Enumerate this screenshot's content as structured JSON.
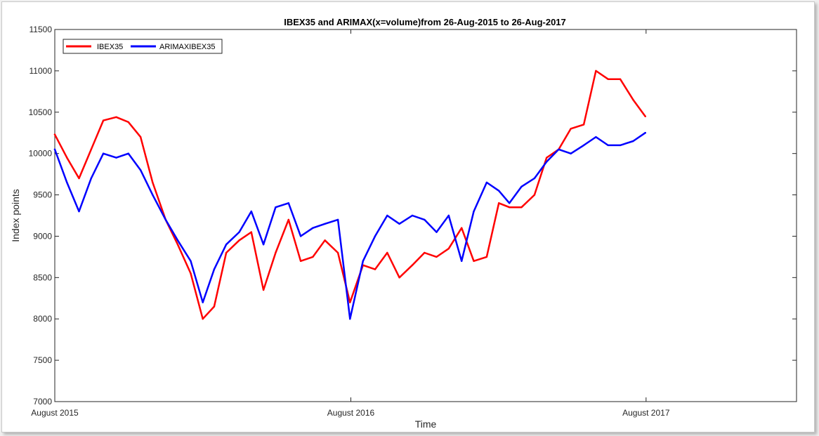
{
  "chart_data": {
    "type": "line",
    "title": "IBEX35 and ARIMAX(x=volume)from 26-Aug-2015 to 26-Aug-2017",
    "xlabel": "Time",
    "ylabel": "Index points",
    "ylim": [
      7000,
      11500
    ],
    "yticks": [
      7000,
      7500,
      8000,
      8500,
      9000,
      9500,
      10000,
      10500,
      11000,
      11500
    ],
    "xlim": [
      "2015-08-26",
      "2018-02-28"
    ],
    "xticks": [
      {
        "date": "2015-08-26",
        "label": "August 2015"
      },
      {
        "date": "2016-08-26",
        "label": "August 2016"
      },
      {
        "date": "2017-08-26",
        "label": "August 2017"
      }
    ],
    "legend_position": "top-left",
    "grid": false,
    "x": [
      "2015-08-26",
      "2015-09-10",
      "2015-09-25",
      "2015-10-10",
      "2015-10-25",
      "2015-11-10",
      "2015-11-25",
      "2015-12-10",
      "2015-12-25",
      "2016-01-10",
      "2016-01-25",
      "2016-02-10",
      "2016-02-25",
      "2016-03-10",
      "2016-03-25",
      "2016-04-10",
      "2016-04-25",
      "2016-05-10",
      "2016-05-25",
      "2016-06-10",
      "2016-06-25",
      "2016-07-10",
      "2016-07-25",
      "2016-08-10",
      "2016-08-25",
      "2016-09-10",
      "2016-09-25",
      "2016-10-10",
      "2016-10-25",
      "2016-11-10",
      "2016-11-25",
      "2016-12-10",
      "2016-12-25",
      "2017-01-10",
      "2017-01-25",
      "2017-02-10",
      "2017-02-25",
      "2017-03-10",
      "2017-03-25",
      "2017-04-10",
      "2017-04-25",
      "2017-05-10",
      "2017-05-25",
      "2017-06-10",
      "2017-06-25",
      "2017-07-10",
      "2017-07-25",
      "2017-08-10",
      "2017-08-25"
    ],
    "series": [
      {
        "name": "IBEX35",
        "color": "#ff0000",
        "values": [
          10230,
          9950,
          9700,
          10050,
          10400,
          10440,
          10380,
          10200,
          9650,
          9200,
          8900,
          8550,
          8000,
          8150,
          8800,
          8950,
          9050,
          8350,
          8800,
          9200,
          8700,
          8750,
          8950,
          8800,
          8200,
          8650,
          8600,
          8800,
          8500,
          8650,
          8800,
          8750,
          8850,
          9100,
          8700,
          8750,
          9400,
          9350,
          9350,
          9500,
          9950,
          10050,
          10300,
          10350,
          11000,
          10900,
          10900,
          10650,
          10450
        ]
      },
      {
        "name": "ARIMAXIBEX35",
        "color": "#0000ff",
        "values": [
          10050,
          9650,
          9300,
          9700,
          10000,
          9950,
          10000,
          9800,
          9500,
          9200,
          8950,
          8700,
          8200,
          8600,
          8900,
          9050,
          9300,
          8900,
          9350,
          9400,
          9000,
          9100,
          9150,
          9200,
          8000,
          8700,
          9000,
          9250,
          9150,
          9250,
          9200,
          9050,
          9250,
          8700,
          9300,
          9650,
          9550,
          9400,
          9600,
          9700,
          9900,
          10050,
          10000,
          10100,
          10200,
          10100,
          10100,
          10150,
          10250
        ]
      }
    ]
  }
}
